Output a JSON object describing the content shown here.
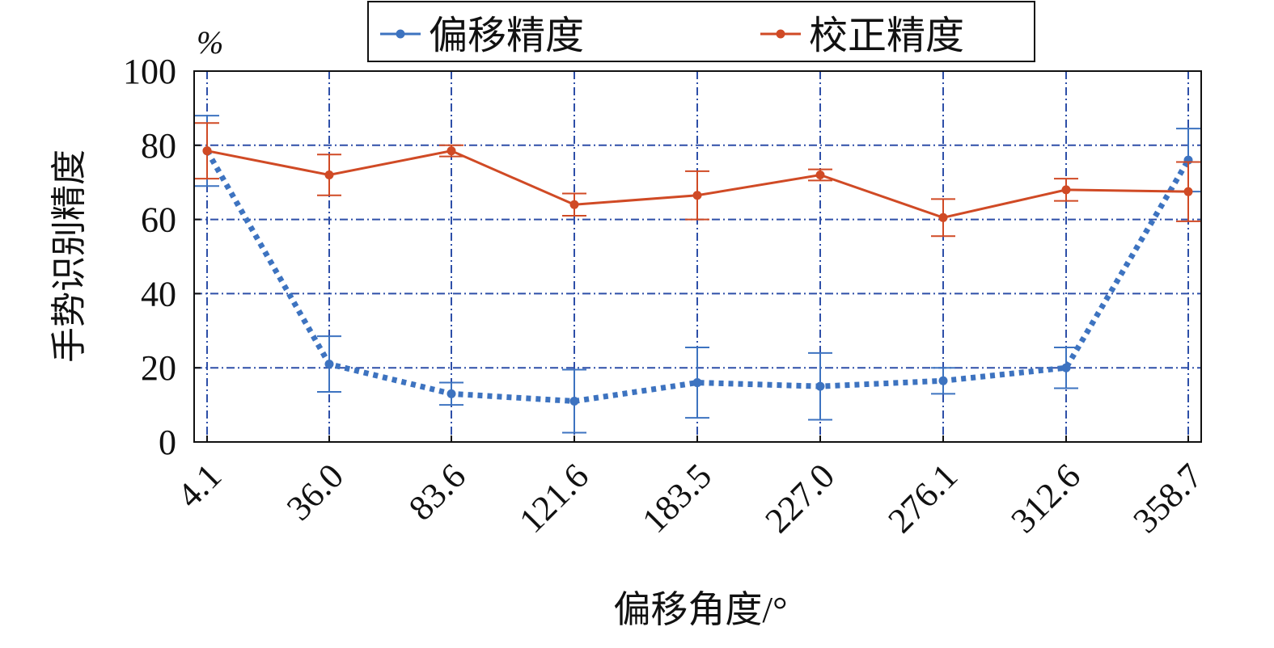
{
  "chart_data": {
    "type": "line",
    "unit_label": "%",
    "xlabel": "偏移角度/°",
    "ylabel": "手势识别精度",
    "categories": [
      "4.1",
      "36.0",
      "83.6",
      "121.6",
      "183.5",
      "227.0",
      "276.1",
      "312.6",
      "358.7"
    ],
    "ylim": [
      0,
      100
    ],
    "yticks": [
      0,
      20,
      40,
      60,
      80,
      100
    ],
    "grid": true,
    "legend_position": "top",
    "series": [
      {
        "name": "偏移精度",
        "color": "#3d73c0",
        "line_style": "dotted",
        "values": [
          78.5,
          21,
          13,
          11,
          16,
          15,
          16.5,
          20,
          76
        ],
        "error": [
          9.5,
          7.5,
          3,
          8.5,
          9.5,
          9,
          3.5,
          5.5,
          8.5
        ]
      },
      {
        "name": "校正精度",
        "color": "#d04a25",
        "line_style": "solid",
        "values": [
          78.5,
          72,
          78.5,
          64,
          66.5,
          72,
          60.5,
          68,
          67.5
        ],
        "error": [
          7.5,
          5.5,
          1.5,
          3,
          6.5,
          1.5,
          5,
          3,
          8
        ]
      }
    ]
  }
}
